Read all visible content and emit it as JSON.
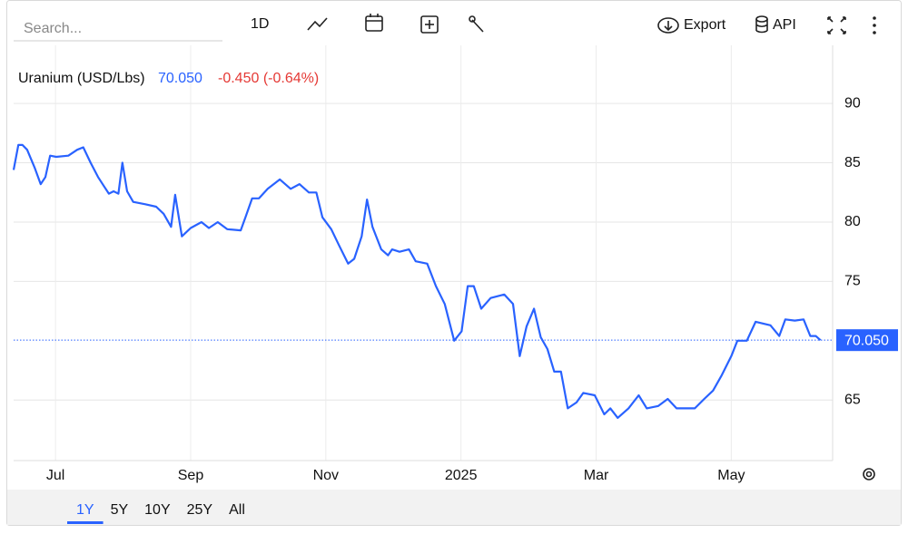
{
  "toolbar": {
    "search_placeholder": "Search...",
    "interval": "1D",
    "export": "Export",
    "api": "API"
  },
  "chart_data": {
    "type": "line",
    "title": "Uranium (USD/Lbs)",
    "change": "-0.450 (-0.64%)",
    "current": {
      "value": 70.05,
      "label": "70.050"
    },
    "series": [
      {
        "name": "Uranium (USD/Lbs)",
        "color": "#2962ff",
        "x": [
          -0.62,
          -0.55,
          -0.49,
          -0.42,
          -0.31,
          -0.22,
          -0.15,
          -0.08,
          0.01,
          0.19,
          0.32,
          0.41,
          0.52,
          0.63,
          0.72,
          0.79,
          0.86,
          0.93,
          0.99,
          1.06,
          1.15,
          1.33,
          1.49,
          1.6,
          1.71,
          1.77,
          1.87,
          2.0,
          2.16,
          2.27,
          2.4,
          2.54,
          2.74,
          2.81,
          2.91,
          3.01,
          3.14,
          3.32,
          3.48,
          3.61,
          3.75,
          3.86,
          3.95,
          4.08,
          4.19,
          4.33,
          4.42,
          4.53,
          4.61,
          4.69,
          4.82,
          4.92,
          4.98,
          5.09,
          5.23,
          5.33,
          5.5,
          5.63,
          5.76,
          5.9,
          6.01,
          6.1,
          6.19,
          6.3,
          6.44,
          6.64,
          6.77,
          6.87,
          6.97,
          7.08,
          7.18,
          7.28,
          7.38,
          7.48,
          7.58,
          7.71,
          7.81,
          7.98,
          8.12,
          8.21,
          8.32,
          8.48,
          8.63,
          8.75,
          8.92,
          9.06,
          9.19,
          9.46,
          9.6,
          9.73,
          9.86,
          10.0,
          10.09,
          10.23,
          10.36,
          10.58,
          10.71,
          10.8,
          10.94,
          11.07,
          11.17,
          11.25,
          11.32
        ],
        "values": [
          84.4,
          86.5,
          86.5,
          86.1,
          84.6,
          83.2,
          83.8,
          85.6,
          85.5,
          85.6,
          86.1,
          86.3,
          85.0,
          83.8,
          83.0,
          82.4,
          82.6,
          82.4,
          85.0,
          82.6,
          81.7,
          81.5,
          81.3,
          80.7,
          79.6,
          82.3,
          78.8,
          79.5,
          80.0,
          79.5,
          80.0,
          79.4,
          79.3,
          80.4,
          82.0,
          82.0,
          82.8,
          83.6,
          82.8,
          83.2,
          82.5,
          82.5,
          80.4,
          79.4,
          78.1,
          76.5,
          76.9,
          78.8,
          81.9,
          79.6,
          77.7,
          77.2,
          77.7,
          77.5,
          77.7,
          76.7,
          76.5,
          74.6,
          73.1,
          70.0,
          70.8,
          74.6,
          74.6,
          72.7,
          73.6,
          73.9,
          73.1,
          68.7,
          71.2,
          72.7,
          70.3,
          69.3,
          67.4,
          67.4,
          64.3,
          64.8,
          65.6,
          65.4,
          63.8,
          64.3,
          63.5,
          64.3,
          65.4,
          64.3,
          64.5,
          65.1,
          64.3,
          64.3,
          65.1,
          65.8,
          67.1,
          68.7,
          70.0,
          70.0,
          71.6,
          71.3,
          70.4,
          71.8,
          71.7,
          71.8,
          70.4,
          70.4,
          70.05
        ]
      }
    ],
    "xlim": [
      -0.62,
      11.5
    ],
    "xticks": [
      {
        "value": 0,
        "label": "Jul"
      },
      {
        "value": 2,
        "label": "Sep"
      },
      {
        "value": 4,
        "label": "Nov"
      },
      {
        "value": 6,
        "label": "2025"
      },
      {
        "value": 8,
        "label": "Mar"
      },
      {
        "value": 10,
        "label": "May"
      }
    ],
    "ylim": [
      59.9,
      94.9
    ],
    "yticks": [
      65,
      75,
      80,
      85,
      90
    ],
    "grid": true
  },
  "ranges": [
    "1Y",
    "5Y",
    "10Y",
    "25Y",
    "All"
  ],
  "active_range": 0
}
